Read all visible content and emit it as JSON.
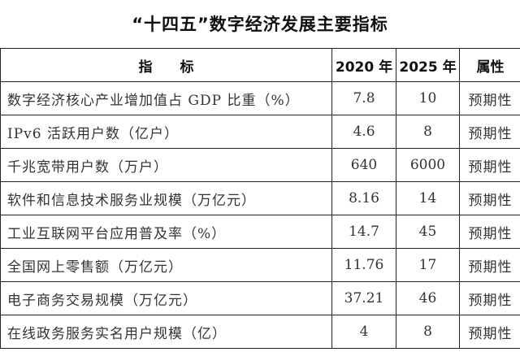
{
  "title": "“十四五”数字经济发展主要指标",
  "headers": {
    "indicator": "指　　标",
    "y2020": "2020 年",
    "y2025": "2025 年",
    "attribute": "属性"
  },
  "rows": [
    {
      "indicator": "数字经济核心产业增加值占 GDP 比重（%）",
      "y2020": "7.8",
      "y2025": "10",
      "attribute": "预期性"
    },
    {
      "indicator": "IPv6 活跃用户数（亿户）",
      "y2020": "4.6",
      "y2025": "8",
      "attribute": "预期性"
    },
    {
      "indicator": "千兆宽带用户数（万户）",
      "y2020": "640",
      "y2025": "6000",
      "attribute": "预期性"
    },
    {
      "indicator": "软件和信息技术服务业规模（万亿元）",
      "y2020": "8.16",
      "y2025": "14",
      "attribute": "预期性"
    },
    {
      "indicator": "工业互联网平台应用普及率（%）",
      "y2020": "14.7",
      "y2025": "45",
      "attribute": "预期性"
    },
    {
      "indicator": "全国网上零售额（万亿元）",
      "y2020": "11.76",
      "y2025": "17",
      "attribute": "预期性"
    },
    {
      "indicator": "电子商务交易规模（万亿元）",
      "y2020": "37.21",
      "y2025": "46",
      "attribute": "预期性"
    },
    {
      "indicator": "在线政务服务实名用户规模（亿）",
      "y2020": "4",
      "y2025": "8",
      "attribute": "预期性"
    }
  ]
}
